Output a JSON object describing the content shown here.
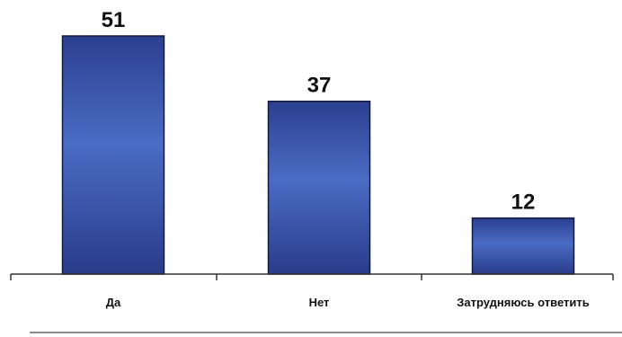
{
  "chart_data": {
    "type": "bar",
    "categories": [
      "Да",
      "Нет",
      "Затрудняюсь ответить"
    ],
    "values": [
      51,
      37,
      12
    ],
    "data_labels": [
      "51",
      "37",
      "12"
    ],
    "title": "",
    "xlabel": "",
    "ylabel": "",
    "ylim": [
      0,
      55
    ],
    "grid": false,
    "legend": "none",
    "colors": {
      "bar_top": "#2c3f8f",
      "bar_mid": "#4a6cc4",
      "bar_bottom": "#2a3c8a",
      "bar_outline": "#151b3d",
      "axis": "#333333"
    }
  }
}
